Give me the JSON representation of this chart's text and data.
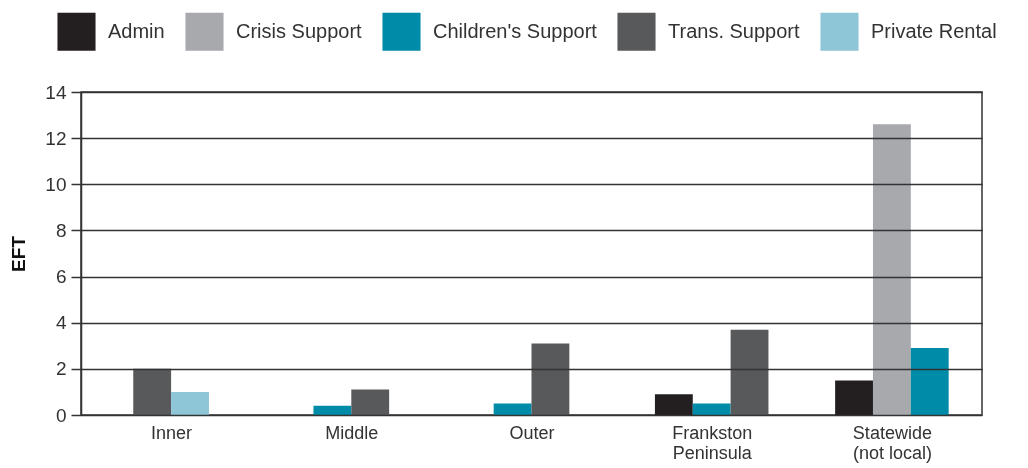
{
  "chart_data": {
    "type": "bar",
    "ylabel": "EFT",
    "categories": [
      "Inner",
      "Middle",
      "Outer",
      "Frankston Peninsula",
      "Statewide (not local)"
    ],
    "series": [
      {
        "name": "Admin",
        "color": "#231f20",
        "values": [
          null,
          null,
          null,
          0.9,
          1.5
        ]
      },
      {
        "name": "Crisis Support",
        "color": "#a7a9ac",
        "values": [
          null,
          null,
          null,
          null,
          12.6
        ]
      },
      {
        "name": "Children's Support",
        "color": "#008ba8",
        "values": [
          null,
          0.4,
          0.5,
          0.5,
          2.9
        ]
      },
      {
        "name": "Trans. Support",
        "color": "#58595b",
        "values": [
          2,
          1.1,
          3.1,
          3.7,
          null
        ]
      },
      {
        "name": "Private Rental",
        "color": "#8ec5d7",
        "values": [
          1,
          null,
          null,
          null,
          null
        ]
      }
    ],
    "ylim": [
      0,
      14
    ],
    "yticks": [
      0,
      2,
      4,
      6,
      8,
      10,
      12,
      14
    ],
    "grid": "y",
    "legend": "top"
  }
}
